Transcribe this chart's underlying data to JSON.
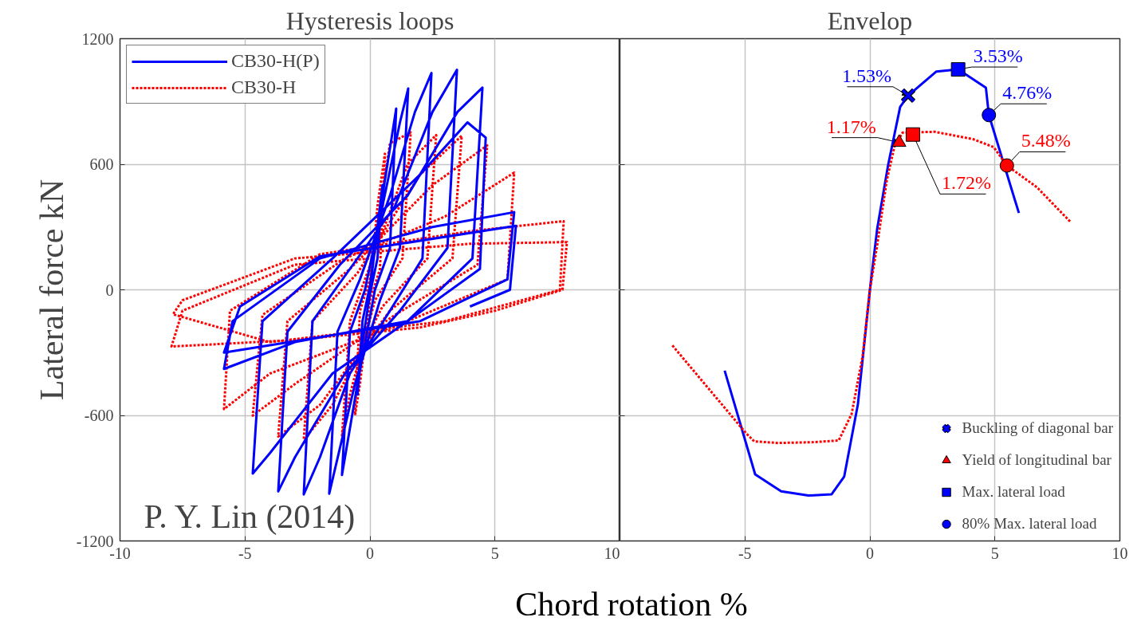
{
  "chart_data": [
    {
      "type": "line",
      "title": "Hysteresis loops",
      "xlabel": "Chord rotation %",
      "ylabel": "Lateral force kN",
      "annotations": [
        "P. Y. Lin (2014)"
      ],
      "xlim": [
        -10,
        10
      ],
      "ylim": [
        -1200,
        1200
      ],
      "xticks": [
        -10,
        -5,
        0,
        5,
        10
      ],
      "yticks": [
        -1200,
        -600,
        0,
        600,
        1200
      ],
      "grid": true,
      "legend": "top left",
      "series": [
        {
          "name": "CB30-H(P)",
          "color": "#0000ff",
          "line_style": "solid",
          "x": [
            0,
            0.3,
            0.5,
            0.3,
            0,
            -0.3,
            -0.5,
            -0.3,
            0,
            0.5,
            1.05,
            0.8,
            0.2,
            -0.5,
            -1.12,
            -0.8,
            -0.2,
            0.5,
            1.2,
            1.53,
            1.2,
            0.4,
            -0.6,
            -1.63,
            -1.3,
            -0.4,
            0.8,
            1.8,
            2.46,
            2.1,
            0.8,
            -0.8,
            -2.0,
            -2.65,
            -2.3,
            -0.8,
            1.0,
            2.5,
            3.48,
            3.1,
            1.2,
            -1.0,
            -3.0,
            -3.67,
            -3.3,
            -1.2,
            1.5,
            3.5,
            4.5,
            4.1,
            1.5,
            -1.5,
            -4.0,
            -4.69,
            -4.3,
            -1.5,
            2.0,
            3.9,
            4.63,
            4.4,
            1.5,
            -3.0,
            -5.84,
            -5.5,
            -2.0,
            2.5,
            5.77,
            5.5,
            2.0,
            -5.84,
            -5.2,
            -2.0,
            5.84,
            5.6,
            4.0
          ],
          "values": [
            0,
            300,
            500,
            150,
            -20,
            -250,
            -500,
            -150,
            20,
            450,
            866,
            200,
            0,
            -450,
            -885,
            -200,
            0,
            400,
            800,
            962,
            200,
            -50,
            -450,
            -974,
            -200,
            50,
            450,
            850,
            1036,
            150,
            -100,
            -400,
            -800,
            -978,
            -150,
            100,
            400,
            850,
            1051,
            200,
            -100,
            -400,
            -800,
            -963,
            -200,
            120,
            450,
            850,
            966,
            150,
            -150,
            -400,
            -780,
            -878,
            -150,
            150,
            550,
            800,
            727,
            100,
            -150,
            -250,
            -378,
            -150,
            150,
            300,
            371,
            50,
            -150,
            -300,
            -80,
            160,
            306,
            0,
            -80
          ]
        },
        {
          "name": "CB30-H",
          "color": "#ff0000",
          "line_style": "dotted",
          "x": [
            0,
            0.3,
            0.6,
            0.4,
            0,
            -0.4,
            -0.6,
            -0.4,
            0,
            0.8,
            1.63,
            1.3,
            0.2,
            -0.8,
            -1.12,
            -0.8,
            -0.2,
            1.5,
            2.65,
            2.3,
            0.5,
            -1.5,
            -2.65,
            -2.3,
            -0.5,
            2.0,
            3.67,
            3.3,
            0.8,
            -2.0,
            -3.67,
            -3.3,
            -0.8,
            2.5,
            4.69,
            4.3,
            1.0,
            -3.0,
            -4.69,
            -4.3,
            -1.0,
            3.0,
            5.77,
            5.5,
            1.5,
            -4.0,
            -5.84,
            -5.6,
            -2.0,
            4.0,
            7.75,
            7.6,
            3.0,
            -4.0,
            -7.88,
            -7.5,
            -3.0,
            4.0,
            7.88,
            7.7,
            5.0,
            2.0,
            -3.0,
            -7.94,
            -7.5,
            -3.0,
            0
          ],
          "values": [
            0,
            400,
            650,
            100,
            -50,
            -450,
            -600,
            -100,
            50,
            700,
            752,
            150,
            -50,
            -500,
            -701,
            -150,
            50,
            600,
            740,
            150,
            -80,
            -550,
            -716,
            -150,
            80,
            550,
            736,
            150,
            -100,
            -550,
            -701,
            -150,
            100,
            500,
            690,
            120,
            -120,
            -450,
            -601,
            -120,
            150,
            350,
            560,
            50,
            -150,
            -400,
            -570,
            -100,
            170,
            280,
            328,
            0,
            -150,
            -250,
            -117,
            -50,
            150,
            220,
            228,
            0,
            -100,
            -180,
            -240,
            -271,
            -100,
            120,
            150
          ]
        }
      ]
    },
    {
      "type": "line",
      "title": "Envelop",
      "annotations": [
        {
          "text": "1.53%",
          "x": 1.53,
          "y": 928
        },
        {
          "text": "1.17%",
          "x": 1.17,
          "y": 704
        },
        {
          "text": "3.53%",
          "x": 3.53,
          "y": 1053
        },
        {
          "text": "1.72%",
          "x": 1.72,
          "y": 742
        },
        {
          "text": "4.76%",
          "x": 4.76,
          "y": 835
        },
        {
          "text": "5.48%",
          "x": 5.48,
          "y": 594
        }
      ],
      "xlim": [
        -10,
        10
      ],
      "ylim": [
        -1200,
        1200
      ],
      "xticks": [
        -5,
        0,
        5,
        10
      ],
      "yticks": [
        -1200,
        -600,
        0,
        600,
        1200
      ],
      "tick_labels": "x",
      "grid": true,
      "legend": "bottom right",
      "series": [
        {
          "color": "#0000ff",
          "line_style": "solid",
          "x": [
            -5.81,
            -4.59,
            -3.55,
            -2.46,
            -1.53,
            -1.03,
            -0.48,
            0,
            0.29,
            0.73,
            1.21,
            1.53,
            2.66,
            3.53,
            4.64,
            4.76,
            5.96
          ],
          "values": [
            -386,
            -882,
            -963,
            -983,
            -977,
            -893,
            -547,
            0,
            290,
            597,
            874,
            928,
            1043,
            1053,
            966,
            835,
            367
          ]
        },
        {
          "color": "#ff0000",
          "line_style": "dotted",
          "x": [
            -7.9,
            -4.95,
            -4.63,
            -3.67,
            -2.27,
            -1.25,
            -0.73,
            -0.29,
            0,
            0.29,
            0.67,
            0.99,
            1.31,
            2.59,
            4.12,
            4.95,
            5.48,
            6.68,
            8.02
          ],
          "values": [
            -266,
            -686,
            -724,
            -732,
            -728,
            -720,
            -593,
            -317,
            0,
            213,
            520,
            689,
            751,
            755,
            720,
            682,
            594,
            490,
            325
          ]
        },
        {
          "type": "scatter",
          "name": "Buckling of diagonal bar",
          "marker": "cross",
          "x": [
            1.53
          ],
          "values": [
            928
          ],
          "colors": [
            "#0000ff"
          ]
        },
        {
          "type": "scatter",
          "name": "Yield of longitudinal bar",
          "marker": "triangle",
          "x": [
            1.17
          ],
          "values": [
            704
          ],
          "colors": [
            "#ff0000"
          ]
        },
        {
          "type": "scatter",
          "name": "Max. lateral load",
          "marker": "square",
          "x": [
            3.53,
            1.72
          ],
          "values": [
            1053,
            742
          ],
          "colors": [
            "#0000ff",
            "#ff0000"
          ]
        },
        {
          "type": "scatter",
          "name": "80% Max. lateral load",
          "marker": "circle",
          "x": [
            4.76,
            5.48
          ],
          "values": [
            835,
            594
          ],
          "colors": [
            "#0000ff",
            "#ff0000"
          ]
        }
      ]
    }
  ]
}
